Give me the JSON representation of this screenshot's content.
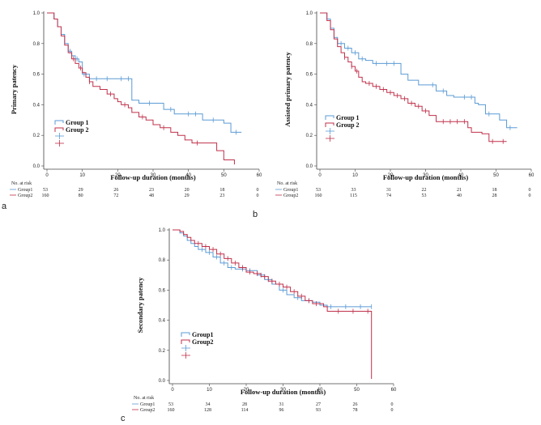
{
  "colors": {
    "group1": "#5b9bd5",
    "group2": "#c0304a",
    "axis": "#444444"
  },
  "chart_data": [
    {
      "type": "line",
      "panel": "a",
      "title": "",
      "ylabel": "Primary patency",
      "xlabel": "Follow-up  duration (months)",
      "xlim": [
        0,
        60
      ],
      "ylim": [
        0,
        1
      ],
      "xticks": [
        "0",
        "10",
        "20",
        "30",
        "40",
        "50",
        "60"
      ],
      "yticks": [
        "0.0",
        "0.2",
        "0.4",
        "0.6",
        "0.8",
        "1.0"
      ],
      "legend": [
        "Group 1",
        "Group 2"
      ],
      "series": [
        {
          "name": "Group 1",
          "steps": [
            [
              0,
              1.0
            ],
            [
              2,
              0.96
            ],
            [
              3,
              0.91
            ],
            [
              4,
              0.86
            ],
            [
              5,
              0.8
            ],
            [
              6,
              0.75
            ],
            [
              7,
              0.72
            ],
            [
              8,
              0.7
            ],
            [
              9,
              0.68
            ],
            [
              10,
              0.6
            ],
            [
              12,
              0.57
            ],
            [
              24,
              0.43
            ],
            [
              26,
              0.41
            ],
            [
              33,
              0.37
            ],
            [
              36,
              0.34
            ],
            [
              44,
              0.3
            ],
            [
              50,
              0.28
            ],
            [
              52,
              0.22
            ],
            [
              55,
              0.22
            ]
          ],
          "censored": [
            6.5,
            8.5,
            10.5,
            14,
            17,
            21,
            23,
            29,
            35,
            40,
            42,
            47,
            53.5
          ]
        },
        {
          "name": "Group 2",
          "steps": [
            [
              0,
              1.0
            ],
            [
              2,
              0.96
            ],
            [
              3,
              0.91
            ],
            [
              4,
              0.85
            ],
            [
              5,
              0.79
            ],
            [
              6,
              0.74
            ],
            [
              7,
              0.7
            ],
            [
              8,
              0.67
            ],
            [
              9,
              0.64
            ],
            [
              10,
              0.61
            ],
            [
              11,
              0.58
            ],
            [
              12,
              0.55
            ],
            [
              13,
              0.52
            ],
            [
              15,
              0.5
            ],
            [
              17,
              0.47
            ],
            [
              19,
              0.44
            ],
            [
              20,
              0.42
            ],
            [
              21,
              0.4
            ],
            [
              23,
              0.38
            ],
            [
              24,
              0.35
            ],
            [
              26,
              0.32
            ],
            [
              28,
              0.3
            ],
            [
              30,
              0.27
            ],
            [
              32,
              0.25
            ],
            [
              35,
              0.22
            ],
            [
              37,
              0.2
            ],
            [
              39,
              0.17
            ],
            [
              41,
              0.15
            ],
            [
              48,
              0.1
            ],
            [
              50,
              0.04
            ],
            [
              53,
              0.04
            ],
            [
              53,
              0.01
            ]
          ],
          "censored": [
            7.5,
            9.5,
            12,
            18,
            22,
            27,
            33,
            42.5
          ]
        }
      ],
      "risk_table": {
        "header": "No. at risk",
        "rows": [
          {
            "label": "Group1",
            "values": [
              "53",
              "29",
              "26",
              "23",
              "20",
              "18",
              "0"
            ]
          },
          {
            "label": "Group2",
            "values": [
              "160",
              "80",
              "72",
              "48",
              "29",
              "23",
              "0"
            ]
          }
        ]
      }
    },
    {
      "type": "line",
      "panel": "b",
      "title": "",
      "ylabel": "Assisted primary patency",
      "xlabel": "Follow-up  duration (months)",
      "xlim": [
        0,
        60
      ],
      "ylim": [
        0,
        1
      ],
      "xticks": [
        "0",
        "10",
        "20",
        "30",
        "40",
        "50",
        "60"
      ],
      "yticks": [
        "0.0",
        "0.2",
        "0.4",
        "0.6",
        "0.8",
        "1.0"
      ],
      "legend": [
        "Group 1",
        "Group 2"
      ],
      "series": [
        {
          "name": "Group 1",
          "steps": [
            [
              0,
              1.0
            ],
            [
              2,
              0.96
            ],
            [
              3,
              0.9
            ],
            [
              4,
              0.84
            ],
            [
              5,
              0.8
            ],
            [
              7,
              0.77
            ],
            [
              9,
              0.74
            ],
            [
              11,
              0.7
            ],
            [
              13,
              0.69
            ],
            [
              15,
              0.67
            ],
            [
              23,
              0.6
            ],
            [
              25,
              0.56
            ],
            [
              28,
              0.53
            ],
            [
              33,
              0.49
            ],
            [
              36,
              0.46
            ],
            [
              38,
              0.45
            ],
            [
              44,
              0.41
            ],
            [
              45,
              0.4
            ],
            [
              47,
              0.34
            ],
            [
              51,
              0.3
            ],
            [
              53,
              0.25
            ],
            [
              56,
              0.25
            ]
          ],
          "censored": [
            6,
            8,
            10,
            12,
            16,
            19,
            21,
            32,
            35,
            41,
            43,
            48,
            54
          ]
        },
        {
          "name": "Group 2",
          "steps": [
            [
              0,
              1.0
            ],
            [
              2,
              0.95
            ],
            [
              3,
              0.89
            ],
            [
              4,
              0.83
            ],
            [
              5,
              0.78
            ],
            [
              6,
              0.74
            ],
            [
              7,
              0.71
            ],
            [
              8,
              0.68
            ],
            [
              9,
              0.65
            ],
            [
              10,
              0.62
            ],
            [
              11,
              0.58
            ],
            [
              12,
              0.55
            ],
            [
              13,
              0.54
            ],
            [
              15,
              0.52
            ],
            [
              17,
              0.5
            ],
            [
              19,
              0.48
            ],
            [
              21,
              0.46
            ],
            [
              23,
              0.44
            ],
            [
              25,
              0.41
            ],
            [
              27,
              0.39
            ],
            [
              29,
              0.36
            ],
            [
              31,
              0.33
            ],
            [
              33,
              0.29
            ],
            [
              39,
              0.29
            ],
            [
              42,
              0.25
            ],
            [
              43,
              0.22
            ],
            [
              46,
              0.21
            ],
            [
              48,
              0.16
            ],
            [
              53,
              0.16
            ]
          ],
          "censored": [
            7,
            9,
            10.5,
            14,
            16,
            18,
            20,
            22,
            24,
            26,
            28,
            30,
            35,
            37,
            39,
            41,
            49,
            52
          ]
        }
      ],
      "risk_table": {
        "header": "No. at risk",
        "rows": [
          {
            "label": "Group1",
            "values": [
              "53",
              "33",
              "31",
              "22",
              "21",
              "18",
              "0"
            ]
          },
          {
            "label": "Group2",
            "values": [
              "160",
              "115",
              "74",
              "53",
              "40",
              "28",
              "0"
            ]
          }
        ]
      }
    },
    {
      "type": "line",
      "panel": "c",
      "title": "",
      "ylabel": "Secondary patency",
      "xlabel": "Follow-up  duration (months)",
      "xlim": [
        0,
        60
      ],
      "ylim": [
        0,
        1
      ],
      "xticks": [
        "0",
        "10",
        "20",
        "30",
        "40",
        "50",
        "60"
      ],
      "yticks": [
        "0.0",
        "0.2",
        "0.4",
        "0.6",
        "0.8",
        "1.0"
      ],
      "legend": [
        "Group1",
        "Group2"
      ],
      "series": [
        {
          "name": "Group1",
          "steps": [
            [
              0,
              1.0
            ],
            [
              2,
              0.98
            ],
            [
              3,
              0.96
            ],
            [
              4,
              0.93
            ],
            [
              5,
              0.91
            ],
            [
              6,
              0.89
            ],
            [
              7,
              0.87
            ],
            [
              9,
              0.85
            ],
            [
              11,
              0.82
            ],
            [
              13,
              0.78
            ],
            [
              15,
              0.75
            ],
            [
              17,
              0.74
            ],
            [
              20,
              0.73
            ],
            [
              23,
              0.7
            ],
            [
              25,
              0.67
            ],
            [
              27,
              0.64
            ],
            [
              29,
              0.6
            ],
            [
              31,
              0.57
            ],
            [
              33,
              0.55
            ],
            [
              35,
              0.53
            ],
            [
              38,
              0.52
            ],
            [
              40,
              0.5
            ],
            [
              42,
              0.49
            ],
            [
              54,
              0.49
            ]
          ],
          "censored": [
            8,
            10,
            12,
            14,
            16,
            19,
            21,
            24,
            26,
            30,
            34,
            37,
            43,
            47,
            51,
            54
          ]
        },
        {
          "name": "Group2",
          "steps": [
            [
              0,
              1.0
            ],
            [
              2,
              0.99
            ],
            [
              3,
              0.97
            ],
            [
              4,
              0.95
            ],
            [
              5,
              0.93
            ],
            [
              6,
              0.91
            ],
            [
              8,
              0.89
            ],
            [
              10,
              0.87
            ],
            [
              12,
              0.84
            ],
            [
              14,
              0.81
            ],
            [
              16,
              0.78
            ],
            [
              18,
              0.75
            ],
            [
              20,
              0.72
            ],
            [
              22,
              0.71
            ],
            [
              24,
              0.69
            ],
            [
              26,
              0.66
            ],
            [
              28,
              0.64
            ],
            [
              30,
              0.62
            ],
            [
              32,
              0.59
            ],
            [
              34,
              0.56
            ],
            [
              36,
              0.53
            ],
            [
              38,
              0.51
            ],
            [
              41,
              0.49
            ],
            [
              42,
              0.46
            ],
            [
              54,
              0.46
            ],
            [
              54,
              0.01
            ]
          ],
          "censored": [
            7,
            9,
            11,
            13,
            15,
            17,
            19,
            21,
            23,
            25,
            27,
            29,
            31,
            33,
            35,
            37,
            39,
            45,
            49,
            53
          ]
        }
      ],
      "risk_table": {
        "header": "No. at risk",
        "rows": [
          {
            "label": "Group1",
            "values": [
              "53",
              "34",
              "28",
              "31",
              "27",
              "26",
              "0"
            ]
          },
          {
            "label": "Group2",
            "values": [
              "160",
              "128",
              "114",
              "96",
              "93",
              "78",
              "0"
            ]
          }
        ]
      }
    }
  ]
}
